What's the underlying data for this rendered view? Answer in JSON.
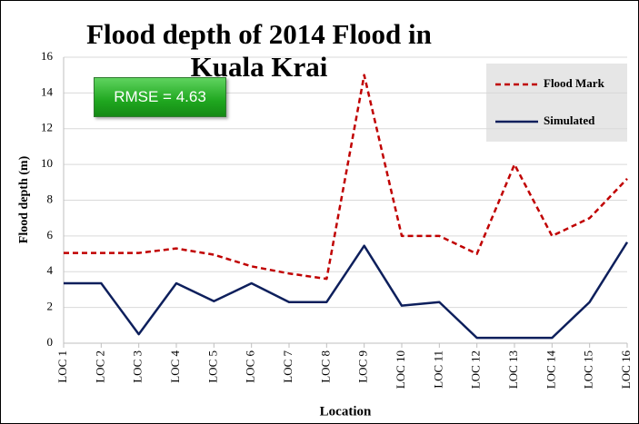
{
  "chart_data": {
    "type": "line",
    "title": "Flood depth of 2014 Flood in Kuala Krai",
    "x_label": "Location",
    "y_label": "Flood depth (m)",
    "annotation": "RMSE = 4.63",
    "categories": [
      "LOC 1",
      "LOC 2",
      "LOC 3",
      "LOC 4",
      "LOC 5",
      "LOC 6",
      "LOC 7",
      "LOC 8",
      "LOC 9",
      "LOC 10",
      "LOC 11",
      "LOC 12",
      "LOC 13",
      "LOC 14",
      "LOC 15",
      "LOC 16"
    ],
    "series": [
      {
        "name": "Flood Mark",
        "color": "#c00000",
        "dash": true,
        "values": [
          5.05,
          5.05,
          5.05,
          5.3,
          4.95,
          4.3,
          3.9,
          3.6,
          15,
          6,
          6,
          5,
          10,
          6,
          7,
          9.2
        ]
      },
      {
        "name": "Simulated",
        "color": "#0d1f5c",
        "dash": false,
        "values": [
          3.35,
          3.35,
          0.5,
          3.35,
          2.35,
          3.35,
          2.3,
          2.3,
          5.45,
          2.1,
          2.3,
          0.3,
          0.3,
          0.3,
          2.3,
          5.65
        ]
      }
    ],
    "ylim": [
      0,
      16
    ],
    "yticks": [
      0,
      2,
      4,
      6,
      8,
      10,
      12,
      14,
      16
    ],
    "grid": true,
    "legend": "upper right"
  }
}
